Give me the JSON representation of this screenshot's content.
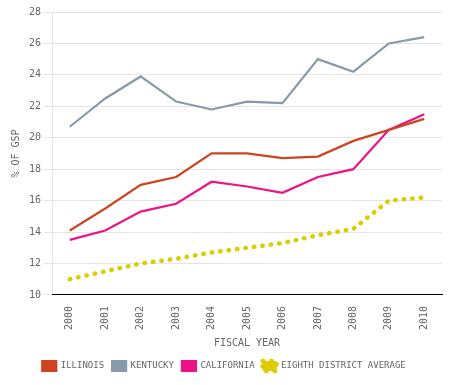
{
  "chart_data": {
    "type": "line",
    "x": [
      2000,
      2001,
      2002,
      2003,
      2004,
      2005,
      2006,
      2007,
      2008,
      2009,
      2010
    ],
    "series": [
      {
        "name": "ILLINOIS",
        "color": "#cc4422",
        "values": [
          14.1,
          15.5,
          17.0,
          17.5,
          19.0,
          19.0,
          18.7,
          18.8,
          19.8,
          20.5,
          21.2
        ]
      },
      {
        "name": "KENTUCKY",
        "color": "#8899aa",
        "values": [
          20.7,
          22.5,
          23.9,
          22.3,
          21.8,
          22.3,
          22.2,
          25.0,
          24.2,
          26.0,
          26.4
        ]
      },
      {
        "name": "CALIFORNIA",
        "color": "#ee1188",
        "values": [
          13.5,
          14.1,
          15.3,
          15.8,
          17.2,
          16.9,
          16.5,
          17.5,
          18.0,
          20.5,
          21.5
        ]
      },
      {
        "name": "EIGHTH DISTRICT AVERAGE",
        "color": "#ddcc00",
        "line_style": "dotted",
        "values": [
          11.0,
          11.5,
          12.0,
          12.3,
          12.7,
          13.0,
          13.3,
          13.8,
          14.2,
          16.0,
          16.2
        ]
      }
    ],
    "x_label": "FISCAL YEAR",
    "y_label": "% OF GSP",
    "xlim": [
      1999.5,
      2010.5
    ],
    "xticks": [
      2000,
      2001,
      2002,
      2003,
      2004,
      2005,
      2006,
      2007,
      2008,
      2009,
      2010
    ],
    "ylim": [
      10,
      28
    ],
    "yticks": [
      10,
      12,
      14,
      16,
      18,
      20,
      22,
      24,
      26,
      28
    ],
    "grid": "y",
    "legend": "bottom"
  }
}
